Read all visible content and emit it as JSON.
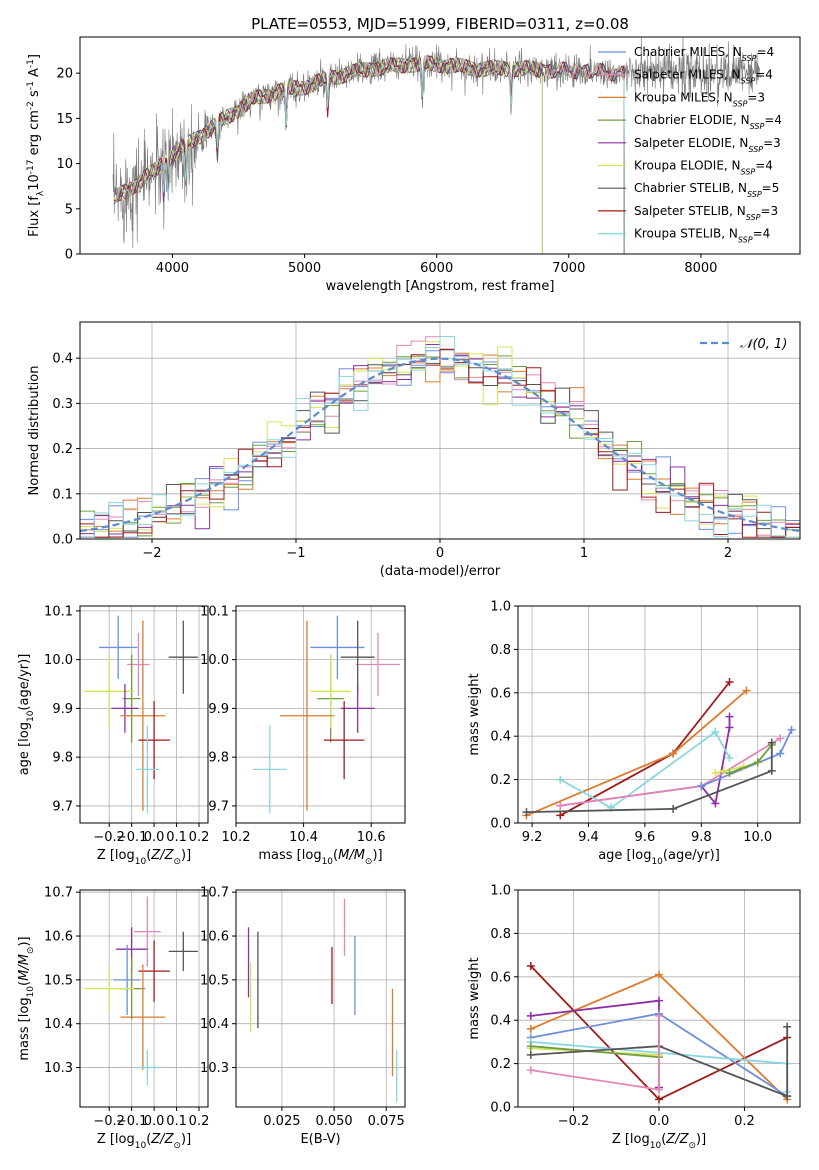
{
  "colors": {
    "blue": "#6e8fdb",
    "orange": "#de7b2d",
    "green": "#6f9e3f",
    "purple": "#8d2fa8",
    "pink": "#e487b7",
    "yellow": "#d6e35c",
    "gray": "#555555",
    "red": "#a11a1a",
    "cyan": "#8ad6e0"
  },
  "chart_data": [
    {
      "id": "spectrum",
      "type": "line",
      "title": "PLATE=0553, MJD=51999, FIBERID=0311, z=0.08",
      "xlabel": "wavelength [Angstrom, rest frame]",
      "ylabel": "Flux [f$_\\lambda$10$^{-17}$ erg cm$^{-2}$ s$^{-1}$ A$^{-1}$]",
      "xlim": [
        3300,
        8750
      ],
      "ylim": [
        0,
        24
      ],
      "xticks": [
        4000,
        5000,
        6000,
        7000,
        8000
      ],
      "yticks": [
        0,
        5,
        10,
        15,
        20
      ],
      "grid": false,
      "legend": "upper right",
      "continuum": {
        "x": [
          3550,
          3700,
          3850,
          4000,
          4200,
          4400,
          4600,
          4800,
          5000,
          5200,
          5500,
          5800,
          6000,
          6300,
          6600,
          6900,
          7200,
          7400
        ],
        "y": [
          6,
          7.5,
          9,
          11,
          13,
          15,
          17,
          18,
          18.5,
          19.5,
          20.5,
          21,
          21,
          20.5,
          20.5,
          20.3,
          20.2,
          20
        ]
      },
      "observed": {
        "name": "",
        "color": "gray",
        "x_range": [
          3550,
          8450
        ]
      },
      "series": [
        {
          "name": "Chabrier MILES, N$_{SSP}$=4",
          "color": "blue",
          "end": 7420
        },
        {
          "name": "Salpeter MILES, N$_{SSP}$=4",
          "color": "pink",
          "end": 7420
        },
        {
          "name": "Kroupa MILES, N$_{SSP}$=3",
          "color": "orange",
          "end": 7420
        },
        {
          "name": "Chabrier ELODIE, N$_{SSP}$=4",
          "color": "green",
          "end": 6800
        },
        {
          "name": "Salpeter ELODIE, N$_{SSP}$=3",
          "color": "purple",
          "end": 6800
        },
        {
          "name": "Kroupa ELODIE, N$_{SSP}$=4",
          "color": "yellow",
          "end": 6800
        },
        {
          "name": "Chabrier STELIB, N$_{SSP}$=5",
          "color": "gray",
          "end": 7420
        },
        {
          "name": "Salpeter STELIB, N$_{SSP}$=3",
          "color": "red",
          "end": 7420
        },
        {
          "name": "Kroupa STELIB, N$_{SSP}$=4",
          "color": "cyan",
          "end": 7420
        }
      ],
      "legend_entries": [
        {
          "label": "Chabrier MILES, N",
          "sub": "SSP",
          "rest": "=4",
          "color": "blue"
        },
        {
          "label": "Salpeter MILES, N",
          "sub": "SSP",
          "rest": "=4",
          "color": "pink"
        },
        {
          "label": "Kroupa MILES, N",
          "sub": "SSP",
          "rest": "=3",
          "color": "orange"
        },
        {
          "label": "Chabrier ELODIE, N",
          "sub": "SSP",
          "rest": "=4",
          "color": "green"
        },
        {
          "label": "Salpeter ELODIE, N",
          "sub": "SSP",
          "rest": "=3",
          "color": "purple"
        },
        {
          "label": "Kroupa ELODIE, N",
          "sub": "SSP",
          "rest": "=4",
          "color": "yellow"
        },
        {
          "label": "Chabrier STELIB, N",
          "sub": "SSP",
          "rest": "=5",
          "color": "gray"
        },
        {
          "label": "Salpeter STELIB, N",
          "sub": "SSP",
          "rest": "=3",
          "color": "red"
        },
        {
          "label": "Kroupa STELIB, N",
          "sub": "SSP",
          "rest": "=4",
          "color": "cyan"
        }
      ]
    },
    {
      "id": "residuals",
      "type": "line",
      "xlabel": "(data-model)/error",
      "ylabel": "Normed distribution",
      "xlim": [
        -2.5,
        2.5
      ],
      "ylim": [
        0,
        0.48
      ],
      "xticks": [
        -2,
        -1,
        0,
        1,
        2
      ],
      "xtick_labels": [
        "−2",
        "−1",
        "0",
        "1",
        "2"
      ],
      "yticks": [
        0,
        0.1,
        0.2,
        0.3,
        0.4
      ],
      "ytick_labels": [
        "0.0",
        "0.1",
        "0.2",
        "0.3",
        "0.4"
      ],
      "grid": true,
      "legend": "upper right",
      "gaussian": {
        "name": "N(0,1)",
        "color": "#5b8bd0",
        "mean": 0,
        "sigma": 1
      },
      "histograms": {
        "bin_width": 0.1,
        "colors": [
          "blue",
          "orange",
          "green",
          "purple",
          "pink",
          "yellow",
          "gray",
          "red",
          "cyan"
        ]
      }
    },
    {
      "id": "age_vs_Z",
      "type": "scatter",
      "xlabel": "Z [log$_{10}$($Z/Z_\\odot$)]",
      "ylabel": "age  [log$_{10}$($age/yr$)]",
      "xlim": [
        -0.33,
        0.24
      ],
      "ylim": [
        9.665,
        10.11
      ],
      "xticks": [
        -0.2,
        -0.1,
        0.0,
        0.1,
        0.2
      ],
      "xtick_labels": [
        "−0.2",
        "−0.1",
        "0.0",
        "0.1",
        "0.2"
      ],
      "yticks": [
        9.7,
        9.8,
        9.9,
        10.0,
        10.1
      ],
      "ytick_labels": [
        "9.7",
        "9.8",
        "9.9",
        "10.0",
        "10.1"
      ],
      "grid": true,
      "points": [
        {
          "color": "blue",
          "x": -0.16,
          "xerr": 0.085,
          "y": 10.025,
          "yerr": 0.065
        },
        {
          "color": "pink",
          "x": -0.07,
          "xerr": 0.05,
          "y": 9.99,
          "yerr": 0.065
        },
        {
          "color": "gray",
          "x": 0.13,
          "xerr": 0.065,
          "y": 10.005,
          "yerr": 0.075
        },
        {
          "color": "green",
          "x": -0.1,
          "xerr": 0.04,
          "y": 9.92,
          "yerr": 0.09
        },
        {
          "color": "yellow",
          "x": -0.2,
          "xerr": 0.11,
          "y": 9.935,
          "yerr": 0.075
        },
        {
          "color": "purple",
          "x": -0.13,
          "xerr": 0.06,
          "y": 9.9,
          "yerr": 0.05
        },
        {
          "color": "orange",
          "x": -0.05,
          "xerr": 0.1,
          "y": 9.885,
          "yerr": 0.195
        },
        {
          "color": "red",
          "x": 0.0,
          "xerr": 0.07,
          "y": 9.835,
          "yerr": 0.08
        },
        {
          "color": "cyan",
          "x": -0.03,
          "xerr": 0.05,
          "y": 9.775,
          "yerr": 0.09
        }
      ]
    },
    {
      "id": "age_vs_mass",
      "type": "scatter",
      "xlabel": "mass [log$_{10}$($M/M_\\odot$)]",
      "ylabel": "",
      "xlim": [
        10.2,
        10.7
      ],
      "ylim": [
        9.665,
        10.11
      ],
      "xticks": [
        10.2,
        10.4,
        10.6
      ],
      "xtick_labels": [
        "10.2",
        "10.4",
        "10.6"
      ],
      "yticks": [
        9.7,
        9.8,
        9.9,
        10.0,
        10.1
      ],
      "ytick_labels": [
        "9.7",
        "9.8",
        "9.9",
        "10.0",
        "10.1"
      ],
      "grid": true,
      "points": [
        {
          "color": "blue",
          "x": 10.5,
          "xerr": 0.08,
          "y": 10.025,
          "yerr": 0.065
        },
        {
          "color": "pink",
          "x": 10.62,
          "xerr": 0.065,
          "y": 9.99,
          "yerr": 0.065
        },
        {
          "color": "gray",
          "x": 10.56,
          "xerr": 0.05,
          "y": 10.005,
          "yerr": 0.075
        },
        {
          "color": "green",
          "x": 10.48,
          "xerr": 0.04,
          "y": 9.92,
          "yerr": 0.09
        },
        {
          "color": "yellow",
          "x": 10.48,
          "xerr": 0.06,
          "y": 9.935,
          "yerr": 0.075
        },
        {
          "color": "purple",
          "x": 10.56,
          "xerr": 0.05,
          "y": 9.9,
          "yerr": 0.05
        },
        {
          "color": "orange",
          "x": 10.41,
          "xerr": 0.08,
          "y": 9.885,
          "yerr": 0.195
        },
        {
          "color": "red",
          "x": 10.52,
          "xerr": 0.06,
          "y": 9.835,
          "yerr": 0.08
        },
        {
          "color": "cyan",
          "x": 10.3,
          "xerr": 0.05,
          "y": 9.775,
          "yerr": 0.09
        }
      ]
    },
    {
      "id": "mass_weight_vs_age",
      "type": "line",
      "xlabel": "age  [log$_{10}$($age/yr$)]",
      "ylabel": "mass weight",
      "xlim": [
        9.15,
        10.15
      ],
      "ylim": [
        0,
        1.0
      ],
      "xticks": [
        9.2,
        9.4,
        9.6,
        9.8,
        10.0
      ],
      "xtick_labels": [
        "9.2",
        "9.4",
        "9.6",
        "9.8",
        "10.0"
      ],
      "yticks": [
        0,
        0.2,
        0.4,
        0.6,
        0.8,
        1.0
      ],
      "ytick_labels": [
        "0.0",
        "0.2",
        "0.4",
        "0.6",
        "0.8",
        "1.0"
      ],
      "grid": true,
      "series": [
        {
          "color": "red",
          "x": [
            9.3,
            9.7,
            9.9
          ],
          "y": [
            0.035,
            0.32,
            0.65
          ]
        },
        {
          "color": "orange",
          "x": [
            9.18,
            9.7,
            9.96
          ],
          "y": [
            0.035,
            0.32,
            0.61
          ]
        },
        {
          "color": "purple",
          "x": [
            9.3,
            9.8,
            9.85,
            9.9,
            9.9
          ],
          "y": [
            0.08,
            0.17,
            0.09,
            0.44,
            0.49
          ]
        },
        {
          "color": "cyan",
          "x": [
            9.3,
            9.48,
            9.85,
            9.9
          ],
          "y": [
            0.2,
            0.07,
            0.42,
            0.3
          ]
        },
        {
          "color": "pink",
          "x": [
            9.3,
            9.8,
            10.08
          ],
          "y": [
            0.08,
            0.17,
            0.39
          ]
        },
        {
          "color": "blue",
          "x": [
            9.8,
            10.08,
            10.12
          ],
          "y": [
            0.17,
            0.32,
            0.43
          ]
        },
        {
          "color": "yellow",
          "x": [
            9.85,
            9.88,
            9.95
          ],
          "y": [
            0.23,
            0.24,
            0.26
          ]
        },
        {
          "color": "green",
          "x": [
            9.9,
            10.0,
            10.05
          ],
          "y": [
            0.23,
            0.28,
            0.36
          ]
        },
        {
          "color": "gray",
          "x": [
            9.18,
            9.7,
            10.05,
            10.05
          ],
          "y": [
            0.05,
            0.065,
            0.24,
            0.37
          ]
        }
      ]
    },
    {
      "id": "mass_vs_Z",
      "type": "scatter",
      "xlabel": "Z [log$_{10}$($Z/Z_\\odot$)]",
      "ylabel": "mass [log$_{10}$($M/M_\\odot$)]",
      "xlim": [
        -0.33,
        0.24
      ],
      "ylim": [
        10.21,
        10.705
      ],
      "xticks": [
        -0.2,
        -0.1,
        0.0,
        0.1,
        0.2
      ],
      "xtick_labels": [
        "−0.2",
        "−0.1",
        "0.0",
        "0.1",
        "0.2"
      ],
      "yticks": [
        10.3,
        10.4,
        10.5,
        10.6,
        10.7
      ],
      "ytick_labels": [
        "10.3",
        "10.4",
        "10.5",
        "10.6",
        "10.7"
      ],
      "grid": true,
      "points": [
        {
          "color": "pink",
          "x": -0.03,
          "xerr": 0.06,
          "y": 10.61,
          "yerr": 0.08
        },
        {
          "color": "purple",
          "x": -0.1,
          "xerr": 0.07,
          "y": 10.57,
          "yerr": 0.05
        },
        {
          "color": "gray",
          "x": 0.13,
          "xerr": 0.065,
          "y": 10.565,
          "yerr": 0.045
        },
        {
          "color": "red",
          "x": 0.0,
          "xerr": 0.07,
          "y": 10.52,
          "yerr": 0.07
        },
        {
          "color": "blue",
          "x": -0.12,
          "xerr": 0.06,
          "y": 10.5,
          "yerr": 0.08
        },
        {
          "color": "green",
          "x": -0.1,
          "xerr": 0.06,
          "y": 10.48,
          "yerr": 0.07
        },
        {
          "color": "yellow",
          "x": -0.2,
          "xerr": 0.11,
          "y": 10.48,
          "yerr": 0.05
        },
        {
          "color": "orange",
          "x": -0.05,
          "xerr": 0.1,
          "y": 10.415,
          "yerr": 0.12
        },
        {
          "color": "cyan",
          "x": -0.03,
          "xerr": 0.05,
          "y": 10.3,
          "yerr": 0.04
        }
      ]
    },
    {
      "id": "mass_vs_ebv",
      "type": "scatter",
      "xlabel": "E(B-V)",
      "ylabel": "",
      "xlim": [
        0.003,
        0.084
      ],
      "ylim": [
        10.21,
        10.705
      ],
      "xticks": [
        0.025,
        0.05,
        0.075
      ],
      "xtick_labels": [
        "0.025",
        "0.050",
        "0.075"
      ],
      "yticks": [
        10.3,
        10.4,
        10.5,
        10.6,
        10.7
      ],
      "ytick_labels": [
        "10.3",
        "10.4",
        "10.5",
        "10.6",
        "10.7"
      ],
      "grid": true,
      "points": [
        {
          "color": "purple",
          "x": 0.009,
          "y": 10.54,
          "yerr": 0.08
        },
        {
          "color": "yellow",
          "x": 0.01,
          "y": 10.46,
          "yerr": 0.08
        },
        {
          "color": "gray",
          "x": 0.0135,
          "y": 10.5,
          "yerr": 0.11
        },
        {
          "color": "red",
          "x": 0.049,
          "y": 10.51,
          "yerr": 0.065
        },
        {
          "color": "pink",
          "x": 0.055,
          "y": 10.62,
          "yerr": 0.065
        },
        {
          "color": "blue",
          "x": 0.06,
          "y": 10.51,
          "yerr": 0.09
        },
        {
          "color": "orange",
          "x": 0.078,
          "y": 10.38,
          "yerr": 0.1
        },
        {
          "color": "cyan",
          "x": 0.08,
          "y": 10.28,
          "yerr": 0.06
        }
      ]
    },
    {
      "id": "mass_weight_vs_Z",
      "type": "line",
      "xlabel": "Z [log$_{10}$($Z/Z_\\odot$)]",
      "ylabel": "mass weight",
      "xlim": [
        -0.33,
        0.33
      ],
      "ylim": [
        0,
        1.0
      ],
      "xticks": [
        -0.2,
        0.0,
        0.2
      ],
      "xtick_labels": [
        "−0.2",
        "0.0",
        "0.2"
      ],
      "yticks": [
        0,
        0.2,
        0.4,
        0.6,
        0.8,
        1.0
      ],
      "ytick_labels": [
        "0.0",
        "0.2",
        "0.4",
        "0.6",
        "0.8",
        "1.0"
      ],
      "grid": true,
      "series": [
        {
          "color": "red",
          "x": [
            -0.3,
            0.0,
            0.3
          ],
          "y": [
            0.65,
            0.035,
            0.32
          ]
        },
        {
          "color": "orange",
          "x": [
            -0.3,
            0.0,
            0.3
          ],
          "y": [
            0.36,
            0.61,
            0.035
          ]
        },
        {
          "color": "purple",
          "x": [
            -0.3,
            0.0,
            0.0
          ],
          "y": [
            0.42,
            0.49,
            0.09
          ]
        },
        {
          "color": "blue",
          "x": [
            -0.3,
            0.0,
            0.3
          ],
          "y": [
            0.32,
            0.43,
            0.05
          ]
        },
        {
          "color": "cyan",
          "x": [
            -0.3,
            0.3,
            0.3
          ],
          "y": [
            0.3,
            0.2,
            0.07
          ]
        },
        {
          "color": "yellow",
          "x": [
            -0.3,
            0.0
          ],
          "y": [
            0.27,
            0.24
          ]
        },
        {
          "color": "green",
          "x": [
            -0.3,
            0.0
          ],
          "y": [
            0.28,
            0.23
          ]
        },
        {
          "color": "gray",
          "x": [
            -0.3,
            0.0,
            0.3,
            0.3
          ],
          "y": [
            0.24,
            0.28,
            0.05,
            0.37
          ]
        },
        {
          "color": "pink",
          "x": [
            -0.3,
            0.0,
            0.0
          ],
          "y": [
            0.17,
            0.08,
            0.42
          ]
        }
      ]
    }
  ]
}
